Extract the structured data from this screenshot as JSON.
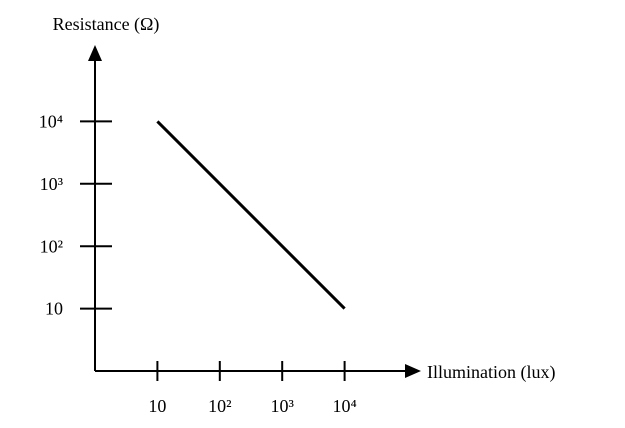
{
  "chart_data": {
    "type": "line",
    "xlabel": "Illumination (lux)",
    "ylabel": "Resistance (Ω)",
    "x": [
      10,
      10000
    ],
    "values": [
      10000,
      10
    ],
    "color": "#000000",
    "xscale": "log",
    "yscale": "log",
    "xlim": [
      1,
      100000
    ],
    "ylim": [
      1,
      100000
    ],
    "xticks": [
      10,
      {
        "value": 100,
        "label": "10²"
      },
      {
        "value": 1000,
        "label": "10³"
      },
      {
        "value": 10000,
        "label": "10⁴"
      }
    ],
    "yticks": [
      10,
      {
        "value": 100,
        "label": "10²"
      },
      {
        "value": 1000,
        "label": "10³"
      },
      {
        "value": 10000,
        "label": "10⁴"
      }
    ]
  }
}
